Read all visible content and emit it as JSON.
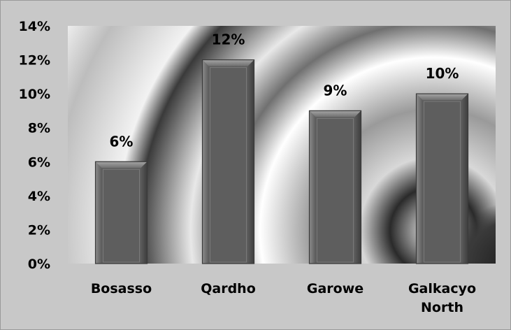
{
  "chart_data": {
    "type": "bar",
    "title": "",
    "xlabel": "",
    "ylabel": "",
    "categories": [
      "Bosasso",
      "Qardho",
      "Garowe",
      "Galkacyo North"
    ],
    "category_lines": [
      [
        "Bosasso"
      ],
      [
        "Qardho"
      ],
      [
        "Garowe"
      ],
      [
        "Galkacyo",
        "North"
      ]
    ],
    "values": [
      6,
      12,
      9,
      10
    ],
    "data_labels": [
      "6%",
      "12%",
      "9%",
      "10%"
    ],
    "ylim": [
      0,
      14
    ],
    "y_ticks": [
      0,
      2,
      4,
      6,
      8,
      10,
      12,
      14
    ],
    "y_tick_labels": [
      "0%",
      "2%",
      "4%",
      "6%",
      "8%",
      "10%",
      "12%",
      "14%"
    ],
    "grid": false,
    "legend": "none",
    "colors": {
      "bar_face": "#6a6a6a",
      "bar_inner": "#5e5e5e",
      "bar_edge": "#3a3a3a",
      "frame": "#c8c8c8",
      "text": "#000000"
    }
  }
}
